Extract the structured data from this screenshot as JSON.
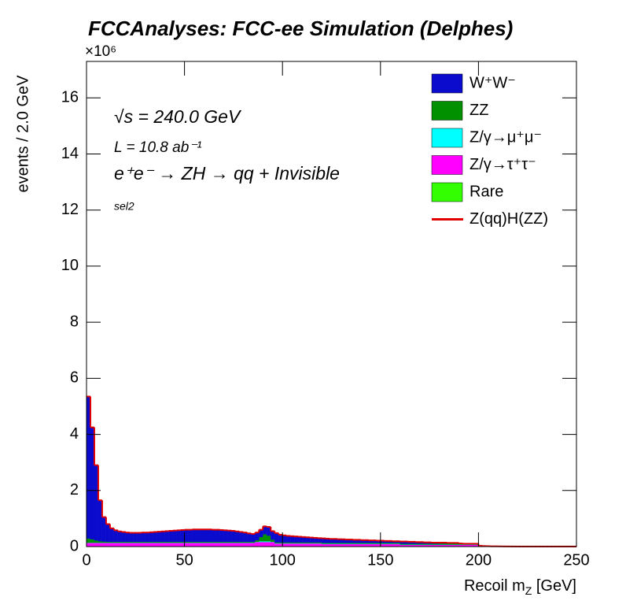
{
  "chart_data": {
    "type": "histogram",
    "title": "FCCAnalyses: FCC-ee Simulation (Delphes)",
    "y_multiplier": "×10⁶",
    "ylabel": "events / 2.0 GeV",
    "xlabel": [
      "Recoil m",
      "Z",
      " [GeV]"
    ],
    "annotations": [
      "√s = 240.0 GeV",
      "L = 10.8 ab⁻¹",
      "e⁺e⁻ → ZH → qq + Invisible",
      "sel2"
    ],
    "xlim": [
      0,
      250
    ],
    "ylim": [
      0,
      17.3
    ],
    "xticks": [
      0,
      50,
      100,
      150,
      200,
      250
    ],
    "yticks": [
      0,
      2,
      4,
      6,
      8,
      10,
      12,
      14,
      16
    ],
    "legend": "top-right",
    "bins": [
      0,
      2,
      4,
      6,
      8,
      10,
      12,
      14,
      16,
      18,
      20,
      22,
      24,
      26,
      28,
      30,
      32,
      34,
      36,
      38,
      40,
      42,
      44,
      46,
      48,
      50,
      52,
      54,
      56,
      58,
      60,
      62,
      64,
      66,
      68,
      70,
      72,
      74,
      76,
      78,
      80,
      82,
      84,
      86,
      88,
      90,
      92,
      94,
      96,
      98,
      100,
      102,
      104,
      106,
      108,
      110,
      112,
      114,
      116,
      118,
      120,
      122,
      124,
      126,
      128,
      130,
      132,
      134,
      136,
      138,
      140,
      142,
      144,
      146,
      148,
      150,
      152,
      154,
      156,
      158,
      160,
      162,
      164,
      166,
      168,
      170,
      172,
      174,
      176,
      178,
      180,
      182,
      184,
      186,
      188,
      190,
      192,
      194,
      196,
      198,
      200,
      202,
      204,
      206,
      208,
      210,
      212,
      214,
      216,
      218,
      220,
      222,
      224,
      226,
      228,
      230,
      232,
      234,
      236,
      238,
      240,
      242,
      244,
      246,
      248,
      250
    ],
    "series": [
      {
        "name": "W⁺W⁻",
        "color": "#0b0bce",
        "values": [
          5.06,
          3.99,
          2.68,
          1.46,
          0.87,
          0.63,
          0.48,
          0.41,
          0.37,
          0.35,
          0.33,
          0.32,
          0.32,
          0.32,
          0.33,
          0.33,
          0.34,
          0.35,
          0.36,
          0.37,
          0.38,
          0.39,
          0.4,
          0.41,
          0.42,
          0.43,
          0.43,
          0.44,
          0.44,
          0.44,
          0.44,
          0.44,
          0.43,
          0.43,
          0.42,
          0.41,
          0.4,
          0.39,
          0.37,
          0.35,
          0.33,
          0.3,
          0.28,
          0.27,
          0.26,
          0.28,
          0.31,
          0.3,
          0.33,
          0.27,
          0.25,
          0.23,
          0.22,
          0.21,
          0.2,
          0.19,
          0.18,
          0.17,
          0.16,
          0.15,
          0.16,
          0.15,
          0.14,
          0.14,
          0.13,
          0.13,
          0.12,
          0.12,
          0.11,
          0.11,
          0.1,
          0.1,
          0.09,
          0.09,
          0.08,
          0.08,
          0.07,
          0.07,
          0.06,
          0.06,
          0.08,
          0.08,
          0.07,
          0.07,
          0.06,
          0.06,
          0.05,
          0.05,
          0.04,
          0.04,
          0.03,
          0.03,
          0.02,
          0.02,
          0.02,
          0.02,
          0.01,
          0.01,
          0.01,
          0.01,
          0.03,
          0.02,
          0.015,
          0.01,
          0.01,
          0.008,
          0.006,
          0.005,
          0.004,
          0.003,
          0.002,
          0.002,
          0.002,
          0.002,
          0.002,
          0.002,
          0.002,
          0.002,
          0.002,
          0.002,
          0.002,
          0.002,
          0.002,
          0.002,
          0.002
        ]
      },
      {
        "name": "ZZ",
        "color": "#009000",
        "values": [
          0.15,
          0.12,
          0.08,
          0.05,
          0.04,
          0.03,
          0.03,
          0.03,
          0.03,
          0.03,
          0.03,
          0.03,
          0.03,
          0.03,
          0.03,
          0.03,
          0.03,
          0.03,
          0.03,
          0.03,
          0.03,
          0.03,
          0.03,
          0.03,
          0.03,
          0.03,
          0.03,
          0.03,
          0.03,
          0.03,
          0.03,
          0.03,
          0.03,
          0.03,
          0.03,
          0.03,
          0.03,
          0.03,
          0.03,
          0.03,
          0.03,
          0.03,
          0.03,
          0.06,
          0.15,
          0.25,
          0.2,
          0.08,
          0.03,
          0.03,
          0.03,
          0.03,
          0.03,
          0.03,
          0.03,
          0.03,
          0.03,
          0.03,
          0.03,
          0.03,
          0.03,
          0.03,
          0.03,
          0.03,
          0.03,
          0.03,
          0.03,
          0.03,
          0.03,
          0.03,
          0.03,
          0.03,
          0.03,
          0.03,
          0.03,
          0.03,
          0.03,
          0.03,
          0.03,
          0.03,
          0.03,
          0.03,
          0.03,
          0.03,
          0.03,
          0.03,
          0.03,
          0.03,
          0.03,
          0.03,
          0.04,
          0.04,
          0.04,
          0.04,
          0.04,
          0.02,
          0.02,
          0.02,
          0.02,
          0.02,
          0,
          0,
          0,
          0,
          0,
          0,
          0,
          0,
          0,
          0,
          0,
          0,
          0,
          0,
          0,
          0,
          0,
          0,
          0,
          0,
          0,
          0,
          0,
          0,
          0
        ]
      },
      {
        "name": "Z/γ→μ⁺μ⁻",
        "color": "#00ffff",
        "values": [
          0.01,
          0.01,
          0.01,
          0.01,
          0.01,
          0.01,
          0.01,
          0.01,
          0.01,
          0.01,
          0.01,
          0.01,
          0.01,
          0.01,
          0.01,
          0.01,
          0.01,
          0.01,
          0.01,
          0.01,
          0.01,
          0.01,
          0.01,
          0.01,
          0.01,
          0.01,
          0.01,
          0.01,
          0.01,
          0.01,
          0.01,
          0.01,
          0.01,
          0.01,
          0.01,
          0.01,
          0.01,
          0.01,
          0.01,
          0.01,
          0.01,
          0.01,
          0.01,
          0.01,
          0.03,
          0.03,
          0.03,
          0.01,
          0.01,
          0.01,
          0.01,
          0.01,
          0.01,
          0.01,
          0.01,
          0.01,
          0.01,
          0.01,
          0.01,
          0.01,
          0.01,
          0.01,
          0.01,
          0.01,
          0.01,
          0.01,
          0.01,
          0.01,
          0.01,
          0.01,
          0.01,
          0.01,
          0.01,
          0.01,
          0.01,
          0.01,
          0.01,
          0.01,
          0.01,
          0.01,
          0.01,
          0.01,
          0.01,
          0.01,
          0.01,
          0.01,
          0.01,
          0.01,
          0.01,
          0.01,
          0.01,
          0.01,
          0.01,
          0.01,
          0.01,
          0.01,
          0.01,
          0.01,
          0.01,
          0.01,
          0,
          0,
          0,
          0,
          0,
          0,
          0,
          0,
          0,
          0,
          0,
          0,
          0,
          0,
          0,
          0,
          0,
          0,
          0,
          0,
          0,
          0,
          0,
          0,
          0
        ]
      },
      {
        "name": "Z/γ→τ⁺τ⁻",
        "color": "#ff00ff",
        "values": [
          0.12,
          0.12,
          0.12,
          0.12,
          0.12,
          0.12,
          0.12,
          0.12,
          0.12,
          0.12,
          0.12,
          0.12,
          0.12,
          0.12,
          0.12,
          0.12,
          0.12,
          0.12,
          0.12,
          0.12,
          0.12,
          0.12,
          0.12,
          0.12,
          0.12,
          0.12,
          0.12,
          0.12,
          0.12,
          0.12,
          0.12,
          0.12,
          0.12,
          0.12,
          0.12,
          0.12,
          0.12,
          0.12,
          0.12,
          0.12,
          0.12,
          0.12,
          0.12,
          0.15,
          0.15,
          0.15,
          0.15,
          0.15,
          0.1,
          0.1,
          0.1,
          0.1,
          0.1,
          0.1,
          0.1,
          0.1,
          0.1,
          0.1,
          0.1,
          0.1,
          0.08,
          0.08,
          0.08,
          0.08,
          0.08,
          0.08,
          0.08,
          0.08,
          0.08,
          0.08,
          0.08,
          0.08,
          0.08,
          0.08,
          0.08,
          0.08,
          0.08,
          0.08,
          0.08,
          0.08,
          0.05,
          0.05,
          0.05,
          0.05,
          0.05,
          0.05,
          0.05,
          0.05,
          0.05,
          0.05,
          0.05,
          0.05,
          0.05,
          0.05,
          0.05,
          0.05,
          0.05,
          0.05,
          0.05,
          0.05,
          0,
          0,
          0,
          0,
          0,
          0,
          0,
          0,
          0,
          0,
          0,
          0,
          0,
          0,
          0,
          0,
          0,
          0,
          0,
          0,
          0,
          0,
          0,
          0,
          0
        ]
      },
      {
        "name": "Rare",
        "color": "#33ff00",
        "values": [
          0.01,
          0.01,
          0.01,
          0.01,
          0.01,
          0.01,
          0.01,
          0.01,
          0.01,
          0.01,
          0.01,
          0.01,
          0.01,
          0.01,
          0.01,
          0.01,
          0.01,
          0.01,
          0.01,
          0.01,
          0.01,
          0.01,
          0.01,
          0.01,
          0.01,
          0.01,
          0.01,
          0.01,
          0.01,
          0.01,
          0.01,
          0.01,
          0.01,
          0.01,
          0.01,
          0.01,
          0.01,
          0.01,
          0.01,
          0.01,
          0.01,
          0.01,
          0.01,
          0.01,
          0.01,
          0.01,
          0.01,
          0.01,
          0.01,
          0.01,
          0.01,
          0.01,
          0.01,
          0.01,
          0.01,
          0.01,
          0.01,
          0.01,
          0.01,
          0.01,
          0.01,
          0.01,
          0.01,
          0.01,
          0.01,
          0.01,
          0.01,
          0.01,
          0.01,
          0.01,
          0.01,
          0.01,
          0.01,
          0.01,
          0.01,
          0.01,
          0.01,
          0.01,
          0.01,
          0.01,
          0.01,
          0.01,
          0.01,
          0.01,
          0.01,
          0.01,
          0.01,
          0.01,
          0.01,
          0.01,
          0.01,
          0.01,
          0.01,
          0.01,
          0.01,
          0.01,
          0.01,
          0.01,
          0.01,
          0.01,
          0,
          0,
          0,
          0,
          0,
          0,
          0,
          0,
          0,
          0,
          0,
          0,
          0,
          0,
          0,
          0,
          0,
          0,
          0,
          0,
          0,
          0,
          0,
          0,
          0
        ]
      },
      {
        "name": "Z(qq)H(ZZ)",
        "color": "#e00000",
        "style": "line",
        "values": [
          0.001,
          0.001,
          0.001,
          0.001,
          0.001,
          0.001,
          0.001,
          0.001,
          0.001,
          0.001,
          0.001,
          0.001,
          0.001,
          0.001,
          0.001,
          0.001,
          0.001,
          0.001,
          0.001,
          0.001,
          0.001,
          0.001,
          0.001,
          0.001,
          0.001,
          0.001,
          0.001,
          0.001,
          0.001,
          0.001,
          0.001,
          0.001,
          0.001,
          0.001,
          0.001,
          0.001,
          0.001,
          0.001,
          0.001,
          0.001,
          0.001,
          0.001,
          0.001,
          0.001,
          0.001,
          0.001,
          0.001,
          0.001,
          0.001,
          0.001,
          0.001,
          0.001,
          0.001,
          0.001,
          0.001,
          0.001,
          0.001,
          0.001,
          0.001,
          0.001,
          0.003,
          0.003,
          0.003,
          0.003,
          0.003,
          0.001,
          0.001,
          0.001,
          0.001,
          0.001,
          0.001,
          0.001,
          0.001,
          0.001,
          0.001,
          0.001,
          0.001,
          0.001,
          0.001,
          0.001,
          0.001,
          0.001,
          0.001,
          0.001,
          0.001,
          0.001,
          0.001,
          0.001,
          0.001,
          0.001,
          0.001,
          0.001,
          0.001,
          0.001,
          0.001,
          0.001,
          0.001,
          0.001,
          0.001,
          0.001,
          0,
          0,
          0,
          0,
          0,
          0,
          0,
          0,
          0,
          0,
          0,
          0,
          0,
          0,
          0,
          0,
          0,
          0,
          0,
          0,
          0,
          0,
          0,
          0,
          0
        ]
      }
    ]
  }
}
